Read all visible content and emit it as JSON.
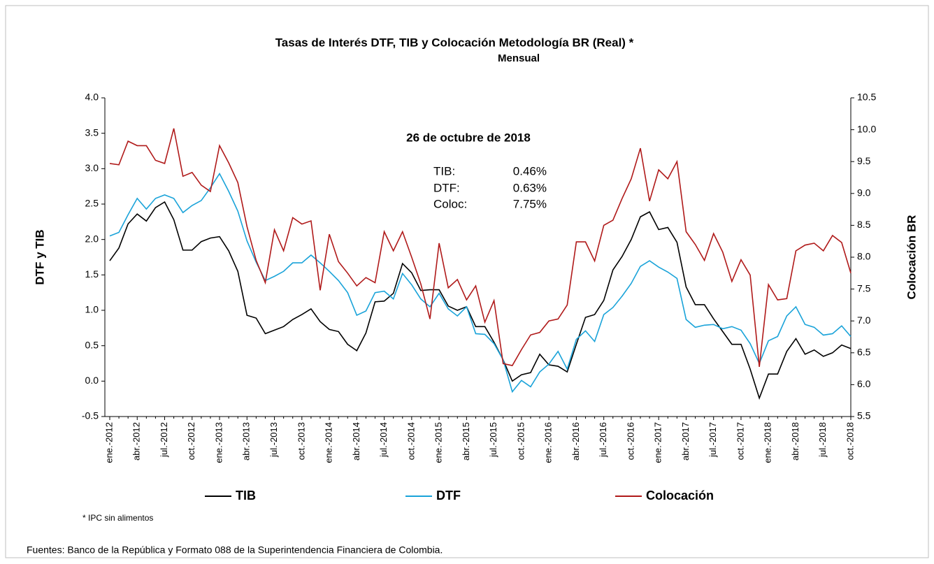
{
  "chart_data": {
    "type": "line",
    "title": "Tasas de Interés  DTF,  TIB  y Colocación Metodología BR  (Real) *",
    "subtitle": "Mensual",
    "y_label": "DTF  y  TIB",
    "y2_label": "Colocación  BR",
    "categories": [
      "ene.-2012",
      null,
      null,
      "abr.-2012",
      null,
      null,
      "jul.-2012",
      null,
      null,
      "oct.-2012",
      null,
      null,
      "ene.-2013",
      null,
      null,
      "abr.-2013",
      null,
      null,
      "jul.-2013",
      null,
      null,
      "oct.-2013",
      null,
      null,
      "ene.-2014",
      null,
      null,
      "abr.-2014",
      null,
      null,
      "jul.-2014",
      null,
      null,
      "oct.-2014",
      null,
      null,
      "ene.-2015",
      null,
      null,
      "abr.-2015",
      null,
      null,
      "jul.-2015",
      null,
      null,
      "oct.-2015",
      null,
      null,
      "ene.-2016",
      null,
      null,
      "abr.-2016",
      null,
      null,
      "jul.-2016",
      null,
      null,
      "oct.-2016",
      null,
      null,
      "ene.-2017",
      null,
      null,
      "abr.-2017",
      null,
      null,
      "jul.-2017",
      null,
      null,
      "oct.-2017",
      null,
      null,
      "ene.-2018",
      null,
      null,
      "abr.-2018",
      null,
      null,
      "jul.-2018",
      null,
      null,
      "oct.-2018"
    ],
    "series": [
      {
        "name": "TIB",
        "color": "#000000",
        "axis": "y",
        "values": [
          1.7,
          1.88,
          2.22,
          2.36,
          2.26,
          2.45,
          2.53,
          2.28,
          1.85,
          1.85,
          1.97,
          2.02,
          2.04,
          1.84,
          1.55,
          0.93,
          0.89,
          0.67,
          0.72,
          0.77,
          0.87,
          0.94,
          1.02,
          0.84,
          0.73,
          0.7,
          0.52,
          0.43,
          0.68,
          1.12,
          1.13,
          1.24,
          1.66,
          1.53,
          1.28,
          1.29,
          1.29,
          1.06,
          1.0,
          1.05,
          0.77,
          0.77,
          0.55,
          0.3,
          0.0,
          0.09,
          0.12,
          0.38,
          0.23,
          0.21,
          0.13,
          0.52,
          0.9,
          0.94,
          1.14,
          1.57,
          1.76,
          2.0,
          2.32,
          2.39,
          2.14,
          2.17,
          1.96,
          1.33,
          1.08,
          1.08,
          0.88,
          0.7,
          0.52,
          0.52,
          0.17,
          -0.24,
          0.1,
          0.1,
          0.42,
          0.6,
          0.38,
          0.44,
          0.35,
          0.4,
          0.51,
          0.46
        ]
      },
      {
        "name": "DTF",
        "color": "#1aa3d9",
        "axis": "y",
        "values": [
          2.05,
          2.1,
          2.35,
          2.58,
          2.43,
          2.58,
          2.63,
          2.58,
          2.38,
          2.48,
          2.55,
          2.73,
          2.93,
          2.68,
          2.4,
          1.98,
          1.68,
          1.42,
          1.48,
          1.55,
          1.67,
          1.67,
          1.78,
          1.67,
          1.55,
          1.42,
          1.25,
          0.93,
          0.99,
          1.25,
          1.27,
          1.16,
          1.52,
          1.36,
          1.16,
          1.05,
          1.24,
          1.02,
          0.92,
          1.05,
          0.67,
          0.66,
          0.53,
          0.3,
          -0.15,
          0.01,
          -0.08,
          0.13,
          0.24,
          0.42,
          0.17,
          0.59,
          0.71,
          0.56,
          0.94,
          1.04,
          1.2,
          1.38,
          1.62,
          1.7,
          1.61,
          1.54,
          1.45,
          0.87,
          0.76,
          0.79,
          0.8,
          0.74,
          0.77,
          0.72,
          0.53,
          0.25,
          0.57,
          0.63,
          0.92,
          1.05,
          0.8,
          0.76,
          0.65,
          0.67,
          0.78,
          0.63
        ]
      },
      {
        "name": "Colocación",
        "color": "#b01a1a",
        "axis": "y2",
        "values": [
          9.47,
          9.45,
          9.82,
          9.75,
          9.75,
          9.52,
          9.47,
          10.02,
          9.27,
          9.33,
          9.13,
          9.03,
          9.75,
          9.48,
          9.17,
          8.48,
          7.95,
          7.6,
          8.43,
          8.1,
          8.62,
          8.52,
          8.57,
          7.48,
          8.36,
          7.93,
          7.75,
          7.55,
          7.68,
          7.6,
          8.4,
          8.1,
          8.4,
          8.0,
          7.58,
          7.03,
          8.22,
          7.52,
          7.65,
          7.33,
          7.55,
          6.98,
          7.32,
          6.33,
          6.3,
          6.55,
          6.78,
          6.82,
          7.0,
          7.03,
          7.25,
          8.24,
          8.24,
          7.94,
          8.5,
          8.58,
          8.92,
          9.23,
          9.71,
          8.88,
          9.37,
          9.23,
          9.5,
          8.4,
          8.2,
          7.95,
          8.37,
          8.08,
          7.62,
          7.96,
          7.72,
          6.28,
          7.57,
          7.33,
          7.35,
          8.1,
          8.19,
          8.22,
          8.1,
          8.34,
          8.23,
          7.75
        ]
      }
    ],
    "ylim": [
      -0.5,
      4.0
    ],
    "yticks": [
      -0.5,
      {
        "value": 0,
        "label": "0.0"
      },
      0.5,
      {
        "value": 1,
        "label": "1.0"
      },
      1.5,
      {
        "value": 2,
        "label": "2.0"
      },
      2.5,
      {
        "value": 3,
        "label": "3.0"
      },
      3.5,
      {
        "value": 4,
        "label": "4.0"
      }
    ],
    "y2lim": [
      5.5,
      10.5
    ],
    "y2ticks": [
      5.5,
      {
        "value": 6,
        "label": "6.0"
      },
      6.5,
      {
        "value": 7,
        "label": "7.0"
      },
      7.5,
      {
        "value": 8,
        "label": "8.0"
      },
      8.5,
      {
        "value": 9,
        "label": "9.0"
      },
      9.5,
      {
        "value": 10,
        "label": "10.0"
      },
      10.5
    ],
    "grid": false,
    "legend": "bottom",
    "annotation": {
      "date": "26 de octubre de 2018",
      "rows": [
        [
          "TIB:",
          "0.46%"
        ],
        [
          "DTF:",
          "0.63%"
        ],
        [
          "Coloc:",
          "7.75%"
        ]
      ]
    },
    "footnote": "* IPC  sin alimentos",
    "source": "Fuentes: Banco de la República y Formato 088 de la Superintendencia Financiera de Colombia."
  }
}
